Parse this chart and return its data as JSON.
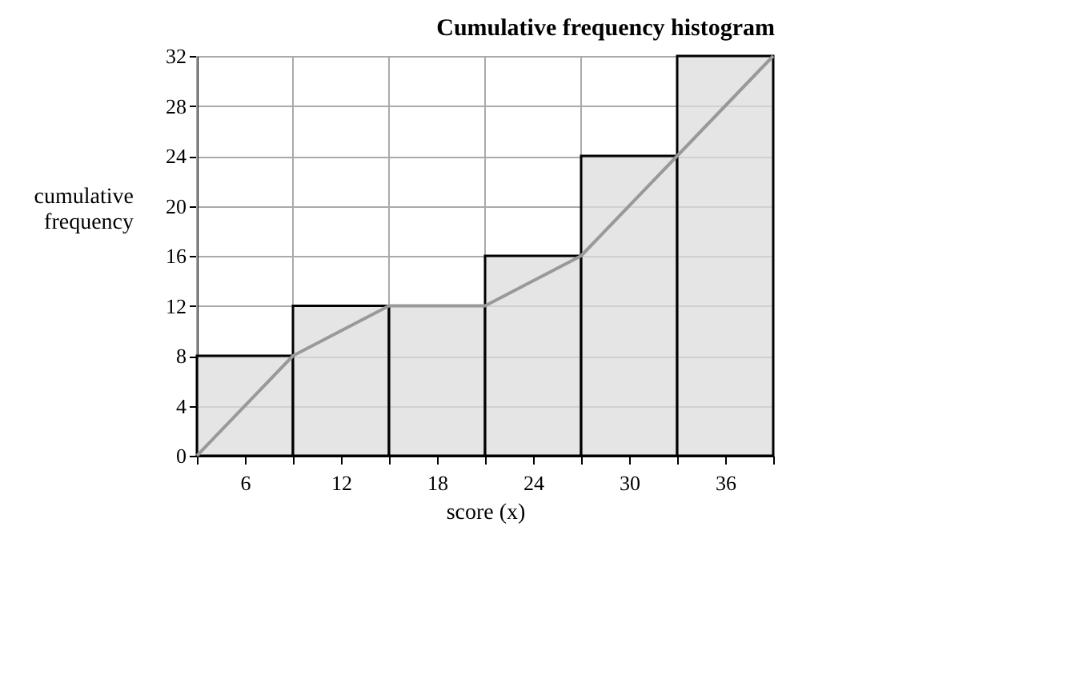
{
  "chart_data": {
    "type": "histogram",
    "title": "Cumulative frequency histogram",
    "xlabel": "score (x)",
    "ylabel": "cumulative frequency",
    "series": [
      {
        "bins": [
          3,
          9,
          15,
          21,
          27,
          33,
          39
        ],
        "values": [
          8,
          12,
          12,
          16,
          24,
          32
        ],
        "color": "#dcdcdc"
      },
      {
        "type": "line",
        "x": [
          3,
          9,
          15,
          21,
          27,
          33,
          39
        ],
        "values": [
          0,
          8,
          12,
          12,
          16,
          24,
          32
        ],
        "color": "#999999"
      }
    ],
    "xlim": [
      3,
      39
    ],
    "xticks": [
      {
        "value": 3,
        "label": null
      },
      6,
      {
        "value": 9,
        "label": null
      },
      12,
      {
        "value": 15,
        "label": null
      },
      18,
      {
        "value": 21,
        "label": null
      },
      24,
      {
        "value": 27,
        "label": null
      },
      30,
      {
        "value": 33,
        "label": null
      },
      36,
      {
        "value": 39,
        "label": null
      }
    ],
    "ylim": [
      0,
      32
    ],
    "yticks": [
      0,
      4,
      8,
      12,
      16,
      20,
      24,
      28,
      32
    ],
    "grid": true
  }
}
